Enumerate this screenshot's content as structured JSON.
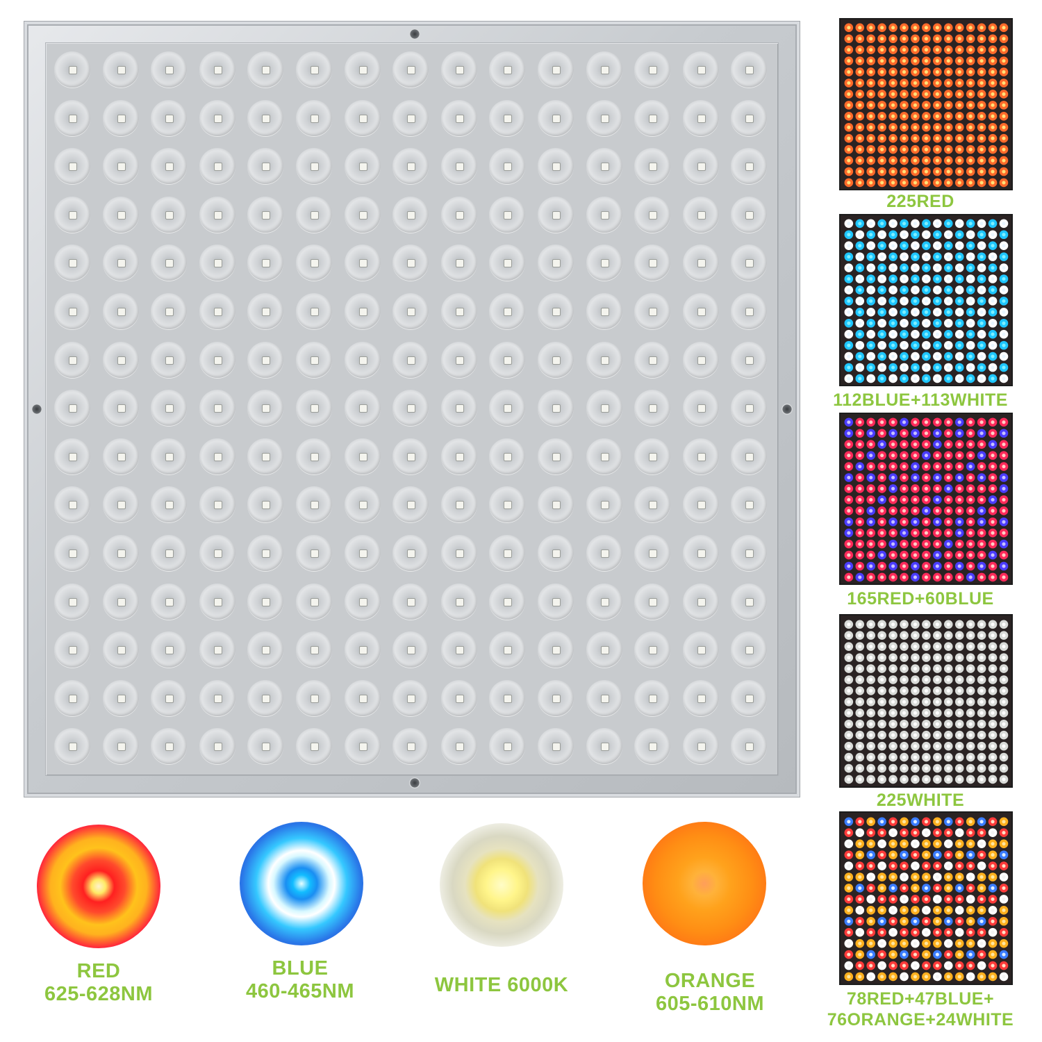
{
  "panel": {
    "leds_per_row": 15,
    "rows": 15
  },
  "variants": [
    {
      "label": "225RED",
      "scheme": "red"
    },
    {
      "label": "112BLUE+113WHITE",
      "scheme": "blue-white"
    },
    {
      "label": "165RED+60BLUE",
      "scheme": "red-blue"
    },
    {
      "label": "225WHITE",
      "scheme": "white"
    },
    {
      "label_line1": "78RED+47BLUE+",
      "label_line2": "76ORANGE+24WHITE",
      "scheme": "mixed"
    }
  ],
  "spectra": [
    {
      "line1": "RED",
      "line2": "625-628NM",
      "color": "#ff2020"
    },
    {
      "line1": "BLUE",
      "line2": "460-465NM",
      "color": "#1a8ef2"
    },
    {
      "line1": "WHITE 6000K",
      "line2": "",
      "color": "#fff58a"
    },
    {
      "line1": "ORANGE",
      "line2": "605-610NM",
      "color": "#ffa21c"
    }
  ],
  "colors": {
    "caption_green": "#8dc63f",
    "panel_silver": "#c8cbce"
  }
}
